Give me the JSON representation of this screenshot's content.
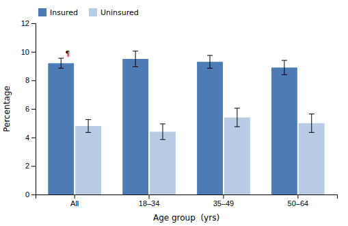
{
  "chart_data": {
    "type": "bar",
    "categories": [
      "All",
      "18–34",
      "35–49",
      "50–64"
    ],
    "series": [
      {
        "name": "Insured",
        "color": "#4D7BB5",
        "values": [
          9.2,
          9.5,
          9.3,
          8.9
        ],
        "errors": [
          0.35,
          0.55,
          0.45,
          0.5
        ]
      },
      {
        "name": "Uninsured",
        "color": "#B8CCE4",
        "values": [
          4.8,
          4.4,
          5.4,
          5.0
        ],
        "errors": [
          0.45,
          0.55,
          0.65,
          0.65
        ]
      }
    ],
    "xlabel": "Age group  (yrs)",
    "ylabel": "Percentage",
    "ylim": [
      0,
      12
    ],
    "yticks": [
      0,
      2,
      4,
      6,
      8,
      10,
      12
    ],
    "grid": false,
    "legend": "upper left",
    "annotation": "¶"
  }
}
